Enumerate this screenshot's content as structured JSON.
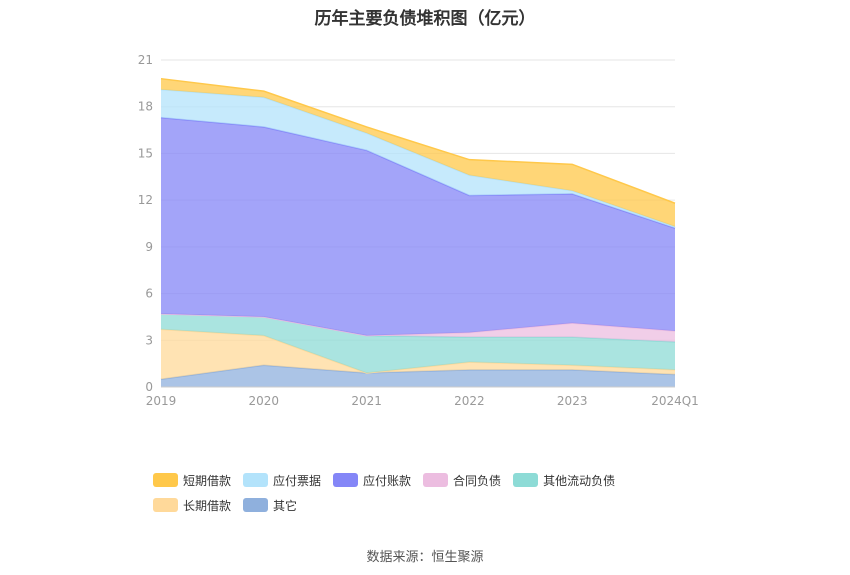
{
  "chart_data": {
    "type": "area",
    "title": "历年主要负债堆积图（亿元）",
    "categories": [
      "2019",
      "2020",
      "2021",
      "2022",
      "2023",
      "2024Q1"
    ],
    "ylim": [
      0,
      21
    ],
    "yticks": [
      0,
      3,
      6,
      9,
      12,
      15,
      18,
      21
    ],
    "grid": true,
    "stacked": true,
    "legend_position": "bottom",
    "series": [
      {
        "name": "其它",
        "color": "#8fb0dd",
        "values": [
          0.5,
          1.4,
          0.9,
          1.1,
          1.1,
          0.8
        ]
      },
      {
        "name": "长期借款",
        "color": "#ffd99a",
        "values": [
          3.2,
          1.9,
          0.0,
          0.5,
          0.3,
          0.3
        ]
      },
      {
        "name": "其他流动负债",
        "color": "#8ddbd6",
        "values": [
          1.0,
          1.2,
          2.4,
          1.6,
          1.8,
          1.8
        ]
      },
      {
        "name": "合同负债",
        "color": "#ecbde0",
        "values": [
          0.0,
          0.0,
          0.0,
          0.3,
          0.9,
          0.7
        ]
      },
      {
        "name": "应付账款",
        "color": "#8486f7",
        "values": [
          12.6,
          12.2,
          11.9,
          8.8,
          8.3,
          6.6
        ]
      },
      {
        "name": "应付票据",
        "color": "#b3e3fb",
        "values": [
          1.8,
          1.9,
          1.1,
          1.3,
          0.2,
          0.1
        ]
      },
      {
        "name": "短期借款",
        "color": "#ffc84a",
        "values": [
          0.7,
          0.4,
          0.4,
          1.0,
          1.7,
          1.5
        ]
      }
    ]
  },
  "legend_order": [
    "短期借款",
    "应付票据",
    "应付账款",
    "合同负债",
    "其他流动负债",
    "长期借款",
    "其它"
  ],
  "source": "数据来源：恒生聚源"
}
